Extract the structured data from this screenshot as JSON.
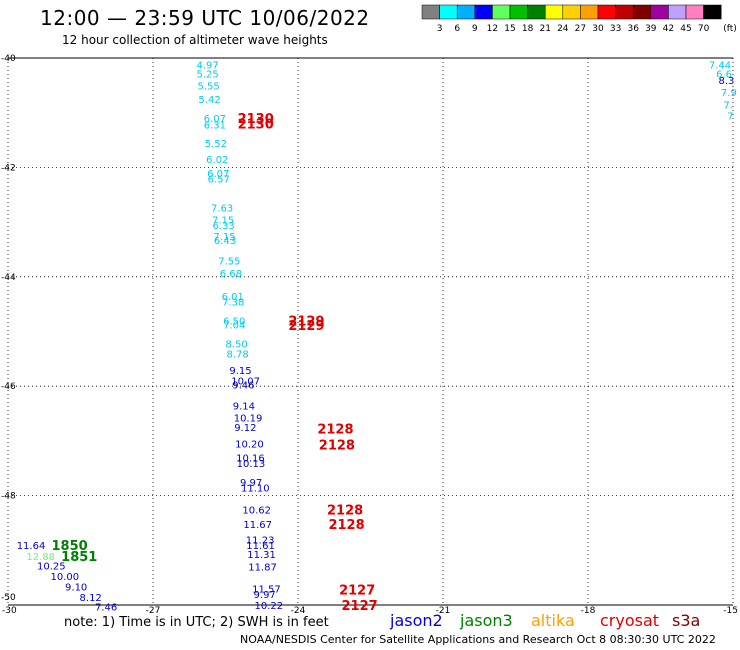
{
  "header": {
    "title": "12:00 — 23:59 UTC 10/06/2022",
    "subtitle": "12 hour collection of altimeter wave heights"
  },
  "footer": {
    "note": "note: 1) Time is in UTC; 2) SWH is in feet",
    "credit": "NOAA/NESDIS Center for Satellite Applications and Research   Oct  8 08:30:30 UTC 2022"
  },
  "colorbar": {
    "unit": "(ft)",
    "labels": [
      "3",
      "6",
      "9",
      "12",
      "15",
      "18",
      "21",
      "24",
      "27",
      "30",
      "33",
      "36",
      "39",
      "42",
      "45",
      "70"
    ],
    "colors": [
      "#808080",
      "#00ffff",
      "#00b0ff",
      "#0000ff",
      "#60ff60",
      "#00c000",
      "#008000",
      "#ffff00",
      "#ffd000",
      "#ffa000",
      "#ff0000",
      "#c00000",
      "#800000",
      "#a000a0",
      "#c0a0ff",
      "#ff80c0",
      "#000000"
    ]
  },
  "legend": [
    {
      "name": "jason2",
      "color": "#0000e0"
    },
    {
      "name": "jason3",
      "color": "#008000"
    },
    {
      "name": "altika",
      "color": "#ffa000"
    },
    {
      "name": "cryosat",
      "color": "#e00000"
    },
    {
      "name": "s3a",
      "color": "#800000"
    }
  ],
  "axes": {
    "lon": {
      "min": -30,
      "max": -15,
      "ticks": [
        -30,
        -27,
        -24,
        -21,
        -18,
        -15
      ],
      "labels": [
        "-30",
        "-27",
        "-24",
        "-21",
        "-18",
        "-15"
      ]
    },
    "lat": {
      "min": -50,
      "max": -40,
      "ticks": [
        -40,
        -42,
        -44,
        -46,
        -48,
        -50
      ],
      "labels": [
        "-40",
        "-42",
        "-44",
        "-46",
        "-48",
        "-50"
      ]
    }
  },
  "points": [
    {
      "lon": -26.1,
      "lat": -40.12,
      "text": "4.97",
      "color": "#00ccee"
    },
    {
      "lon": -26.1,
      "lat": -40.28,
      "text": "5.25",
      "color": "#00ccee"
    },
    {
      "lon": -26.08,
      "lat": -40.5,
      "text": "5.55",
      "color": "#00ccee"
    },
    {
      "lon": -26.06,
      "lat": -40.75,
      "text": "5.42",
      "color": "#00ccee"
    },
    {
      "lon": -25.95,
      "lat": -41.1,
      "text": "6.07",
      "color": "#00ccee"
    },
    {
      "lon": -25.95,
      "lat": -41.22,
      "text": "6.31",
      "color": "#00ccee"
    },
    {
      "lon": -25.93,
      "lat": -41.55,
      "text": "5.52",
      "color": "#00ccee"
    },
    {
      "lon": -25.9,
      "lat": -41.85,
      "text": "6.02",
      "color": "#00ccee"
    },
    {
      "lon": -25.88,
      "lat": -42.1,
      "text": "6.07",
      "color": "#00ccee"
    },
    {
      "lon": -25.87,
      "lat": -42.2,
      "text": "6.57",
      "color": "#00ccee"
    },
    {
      "lon": -25.8,
      "lat": -42.73,
      "text": "7.63",
      "color": "#00ccee"
    },
    {
      "lon": -25.78,
      "lat": -42.95,
      "text": "7.15",
      "color": "#00ccee"
    },
    {
      "lon": -25.77,
      "lat": -43.05,
      "text": "6.33",
      "color": "#00ccee"
    },
    {
      "lon": -25.75,
      "lat": -43.25,
      "text": "7.15",
      "color": "#00ccee"
    },
    {
      "lon": -25.74,
      "lat": -43.33,
      "text": "6.43",
      "color": "#00ccee"
    },
    {
      "lon": -25.65,
      "lat": -43.7,
      "text": "7.55",
      "color": "#00ccee"
    },
    {
      "lon": -25.62,
      "lat": -43.93,
      "text": "6.68",
      "color": "#00ccee"
    },
    {
      "lon": -25.58,
      "lat": -44.35,
      "text": "6.01",
      "color": "#00ccee"
    },
    {
      "lon": -25.57,
      "lat": -44.45,
      "text": "7.38",
      "color": "#00ccee"
    },
    {
      "lon": -25.55,
      "lat": -44.8,
      "text": "6.50",
      "color": "#00ccee"
    },
    {
      "lon": -25.55,
      "lat": -44.87,
      "text": "7.04",
      "color": "#00ccee"
    },
    {
      "lon": -25.5,
      "lat": -45.22,
      "text": "8.50",
      "color": "#00ccee"
    },
    {
      "lon": -25.48,
      "lat": -45.4,
      "text": "8.78",
      "color": "#00ccee"
    },
    {
      "lon": -25.42,
      "lat": -45.7,
      "text": "9.15",
      "color": "#0000cc"
    },
    {
      "lon": -25.38,
      "lat": -45.9,
      "text": "10.07",
      "color": "#0000cc"
    },
    {
      "lon": -25.36,
      "lat": -45.97,
      "text": "9.46",
      "color": "#0000cc"
    },
    {
      "lon": -25.35,
      "lat": -46.35,
      "text": "9.14",
      "color": "#0000cc"
    },
    {
      "lon": -25.33,
      "lat": -46.57,
      "text": "10.19",
      "color": "#0000cc"
    },
    {
      "lon": -25.32,
      "lat": -46.75,
      "text": "9.12",
      "color": "#0000cc"
    },
    {
      "lon": -25.3,
      "lat": -47.05,
      "text": "10.20",
      "color": "#0000cc"
    },
    {
      "lon": -25.28,
      "lat": -47.3,
      "text": "10.16",
      "color": "#0000cc"
    },
    {
      "lon": -25.27,
      "lat": -47.4,
      "text": "10.13",
      "color": "#0000cc"
    },
    {
      "lon": -25.2,
      "lat": -47.75,
      "text": "9.97",
      "color": "#0000cc"
    },
    {
      "lon": -25.18,
      "lat": -47.85,
      "text": "11.10",
      "color": "#0000cc"
    },
    {
      "lon": -25.15,
      "lat": -48.25,
      "text": "10.62",
      "color": "#0000cc"
    },
    {
      "lon": -25.13,
      "lat": -48.52,
      "text": "11.67",
      "color": "#0000cc"
    },
    {
      "lon": -25.08,
      "lat": -48.8,
      "text": "11.23",
      "color": "#0000cc"
    },
    {
      "lon": -25.07,
      "lat": -48.9,
      "text": "11.61",
      "color": "#0000cc"
    },
    {
      "lon": -25.05,
      "lat": -49.07,
      "text": "11.31",
      "color": "#0000cc"
    },
    {
      "lon": -25.03,
      "lat": -49.3,
      "text": "11.87",
      "color": "#0000cc"
    },
    {
      "lon": -24.95,
      "lat": -49.7,
      "text": "11.57",
      "color": "#0000cc"
    },
    {
      "lon": -24.92,
      "lat": -49.8,
      "text": "9.97",
      "color": "#0000cc"
    },
    {
      "lon": -24.9,
      "lat": -50.0,
      "text": "10.22",
      "color": "#0000cc"
    },
    {
      "lon": -29.82,
      "lat": -48.9,
      "text": "11.64",
      "color": "#0000cc"
    },
    {
      "lon": -29.62,
      "lat": -49.1,
      "text": "12.88",
      "color": "#60ff60"
    },
    {
      "lon": -29.4,
      "lat": -49.28,
      "text": "10.25",
      "color": "#0000cc"
    },
    {
      "lon": -29.12,
      "lat": -49.47,
      "text": "10.00",
      "color": "#0000cc"
    },
    {
      "lon": -28.82,
      "lat": -49.66,
      "text": "9.10",
      "color": "#0000cc"
    },
    {
      "lon": -28.52,
      "lat": -49.85,
      "text": "8.12",
      "color": "#0000cc"
    },
    {
      "lon": -28.2,
      "lat": -50.03,
      "text": "7.46",
      "color": "#0000cc"
    },
    {
      "lon": -15.5,
      "lat": -40.12,
      "text": "7.44",
      "color": "#00ccee"
    },
    {
      "lon": -15.35,
      "lat": -40.28,
      "text": "6.6",
      "color": "#00ccee"
    },
    {
      "lon": -15.3,
      "lat": -40.4,
      "text": "8.3",
      "color": "#0000cc"
    },
    {
      "lon": -15.25,
      "lat": -40.62,
      "text": "7.9",
      "color": "#00ccee"
    },
    {
      "lon": -15.2,
      "lat": -40.85,
      "text": "7.",
      "color": "#00ccee"
    },
    {
      "lon": -15.12,
      "lat": -41.05,
      "text": "7",
      "color": "#00ccee"
    }
  ],
  "time_labels": [
    {
      "lon": -25.25,
      "lat": -41.1,
      "text": "2130",
      "color": "#e00000"
    },
    {
      "lon": -25.25,
      "lat": -41.2,
      "text": "2130",
      "color": "#e00000"
    },
    {
      "lon": -24.2,
      "lat": -44.8,
      "text": "2129",
      "color": "#e00000"
    },
    {
      "lon": -24.2,
      "lat": -44.88,
      "text": "2129",
      "color": "#e00000"
    },
    {
      "lon": -23.6,
      "lat": -46.77,
      "text": "2128",
      "color": "#e00000"
    },
    {
      "lon": -23.57,
      "lat": -47.07,
      "text": "2128",
      "color": "#e00000"
    },
    {
      "lon": -23.4,
      "lat": -48.25,
      "text": "2128",
      "color": "#e00000"
    },
    {
      "lon": -23.37,
      "lat": -48.52,
      "text": "2128",
      "color": "#e00000"
    },
    {
      "lon": -23.15,
      "lat": -49.72,
      "text": "2127",
      "color": "#e00000"
    },
    {
      "lon": -23.1,
      "lat": -50.0,
      "text": "2127",
      "color": "#e00000"
    },
    {
      "lon": -29.1,
      "lat": -48.9,
      "text": "1850",
      "color": "#008000"
    },
    {
      "lon": -28.9,
      "lat": -49.1,
      "text": "1851",
      "color": "#008000"
    }
  ]
}
